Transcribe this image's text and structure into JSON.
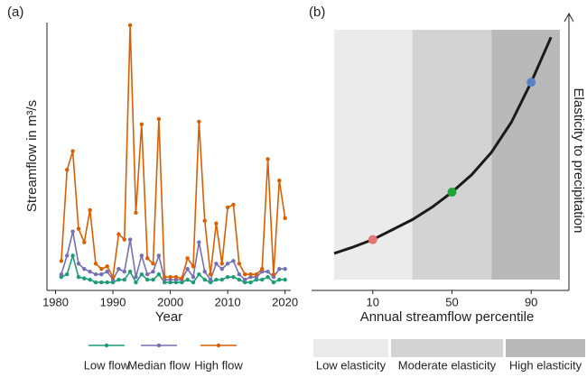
{
  "chart_data": [
    {
      "type": "line",
      "panel": "(a)",
      "xlabel": "Year",
      "ylabel": "Streamflow in m³/s",
      "x": [
        1981,
        1982,
        1983,
        1984,
        1985,
        1986,
        1987,
        1988,
        1989,
        1990,
        1991,
        1992,
        1993,
        1994,
        1995,
        1996,
        1997,
        1998,
        1999,
        2000,
        2001,
        2002,
        2003,
        2004,
        2005,
        2006,
        2007,
        2008,
        2009,
        2010,
        2011,
        2012,
        2013,
        2014,
        2015,
        2016,
        2017,
        2018,
        2019,
        2020
      ],
      "xlim": [
        1978.5,
        2021
      ],
      "xticks": [
        1980,
        1990,
        2000,
        2010,
        2020
      ],
      "ylim": [
        0,
        100
      ],
      "series": [
        {
          "name": "Low flow",
          "color": "#1b9e77",
          "values": [
            5,
            6,
            13,
            5,
            4.5,
            4,
            3,
            3,
            3,
            3,
            4,
            4,
            7,
            3,
            6,
            4,
            4,
            6,
            3,
            3,
            3,
            3,
            4,
            3,
            6,
            4,
            3,
            4,
            4,
            5,
            5,
            4,
            3,
            3,
            4,
            4,
            5,
            3,
            4,
            4
          ]
        },
        {
          "name": "Median flow",
          "color": "#7570b3",
          "values": [
            6,
            13,
            22,
            10,
            8,
            7,
            6,
            6,
            7,
            4,
            8,
            7,
            19,
            5,
            13,
            6,
            7,
            13,
            4,
            4,
            4,
            4,
            8,
            5,
            18,
            7,
            4,
            10,
            8,
            10,
            11,
            6,
            4,
            5,
            5,
            7,
            7,
            5,
            8,
            8
          ]
        },
        {
          "name": "High flow",
          "color": "#d95f02",
          "values": [
            11,
            45,
            52,
            23,
            18,
            30,
            10,
            8,
            9,
            5,
            21,
            19,
            99,
            29,
            62,
            12,
            10,
            64,
            5,
            5,
            5,
            4.5,
            12,
            9,
            63,
            26,
            6,
            25,
            10,
            31,
            32,
            10,
            6,
            6,
            6,
            8,
            49,
            6,
            41,
            27
          ]
        }
      ]
    },
    {
      "type": "curve",
      "panel": "(b)",
      "xlabel": "Annual streamflow percentile",
      "ylabel": "Elasticity to precipitation",
      "xlim": [
        -9.5,
        104.5
      ],
      "xticks": [
        10,
        50,
        90
      ],
      "ylim": [
        0,
        100
      ],
      "bands": [
        {
          "name": "Low elasticity",
          "color": "#ebebeb",
          "from": -9.5,
          "to": 30
        },
        {
          "name": "Moderate elasticity",
          "color": "#d3d3d3",
          "from": 30,
          "to": 70
        },
        {
          "name": "High elasticity",
          "color": "#b9b9b9",
          "from": 70,
          "to": 104.5
        }
      ],
      "curve": {
        "color": "#1a1a1a",
        "x": [
          -9.5,
          0,
          10,
          20,
          30,
          40,
          50,
          60,
          70,
          80,
          90,
          100
        ],
        "values": [
          10.5,
          13,
          16,
          20,
          24,
          29,
          35,
          42,
          51,
          63,
          79,
          97
        ]
      },
      "points": {
        "x": [
          10,
          50,
          90
        ],
        "values": [
          16,
          35,
          79
        ],
        "colors": [
          "#e87474",
          "#22a33a",
          "#5b84c4"
        ]
      }
    }
  ]
}
